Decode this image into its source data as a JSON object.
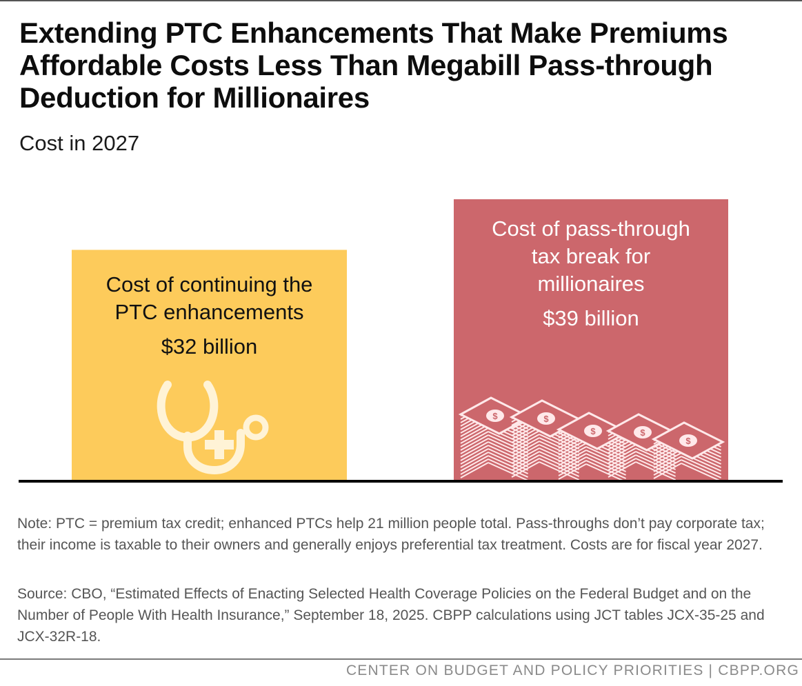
{
  "title": "Extending PTC Enhancements That Make Premiums Affordable Costs Less Than Megabill Pass-through Deduction for Millionaires",
  "subtitle": "Cost in 2027",
  "chart_data": {
    "type": "bar",
    "categories": [
      "Cost of continuing the PTC enhancements",
      "Cost of pass-through tax break for millionaires"
    ],
    "values": [
      32,
      39
    ],
    "value_labels": [
      "$32 billion",
      "$39 billion"
    ],
    "unit": "billion dollars",
    "colors": [
      "#fdcb5b",
      "#cc676c"
    ],
    "ylim": [
      0,
      39
    ],
    "grid": false,
    "legend": "none"
  },
  "bars": [
    {
      "name_line1": "Cost of continuing the",
      "name_line2": "PTC enhancements",
      "value_label": "$32 billion",
      "icon": "stethoscope-icon"
    },
    {
      "name_line1": "Cost of pass-through",
      "name_line2": "tax break for",
      "name_line3": "millionaires",
      "value_label": "$39 billion",
      "icon": "money-stacks-icon"
    }
  ],
  "note": "Note: PTC = premium tax credit; enhanced PTCs help 21 million people total. Pass-throughs don’t pay corporate tax; their income is taxable to their owners and generally enjoys preferential tax treatment. Costs are for fiscal year 2027.",
  "source": "Source: CBO, “Estimated Effects of Enacting Selected Health Coverage Policies on the Federal Budget and on the Number of People With Health Insurance,” September 18, 2025. CBPP calculations using JCT tables JCX-35-25 and JCX-32R-18.",
  "footer": "CENTER ON BUDGET AND POLICY PRIORITIES | CBPP.ORG"
}
